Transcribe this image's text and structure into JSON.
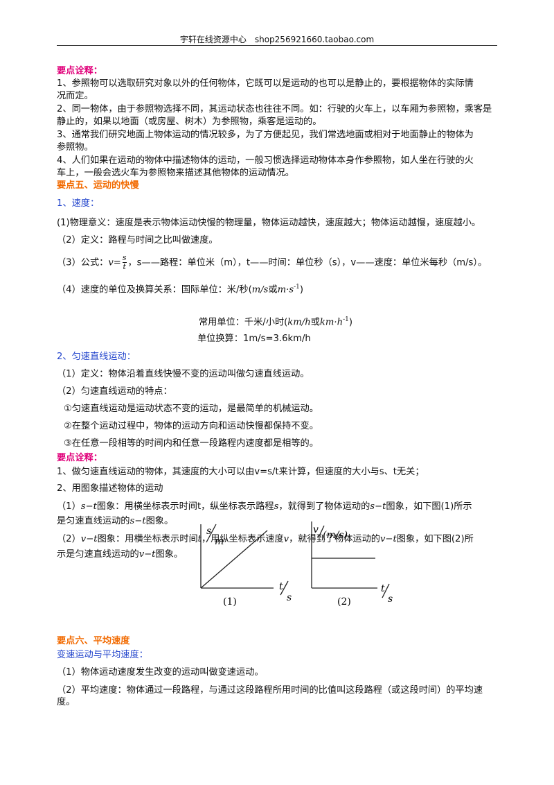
{
  "header": {
    "site": "宇轩在线资源中心",
    "shop": "shop256921660.taobao.com"
  },
  "lines": [
    "要点诠释：",
    "1、参照物可以选取研究对象以外的任何物体，它既可以是运动的也可以是静止的，要根据物体的实际情",
    "况而定。",
    "2、同一物体，由于参照物选择不同，其运动状态也往往不同。如：行驶的火车上，以车厢为参照物，乘客是",
    "静止的，如果以地面（或房屋、树木）为参照物，乘客是运动的。",
    "3、通常我们研究地面上物体运动的情况较多，为了方便起见，我们常选地面或相对于地面静止的物体为",
    "参照物。",
    "4、人们如果在运动的物体中描述物体的运动，一般习惯选择运动物体本身作参照物，如人坐在行驶的火",
    "车上，一般会选火车为参照物来描述其他物体的运动情况。",
    "要点五、运动的快慢",
    "1、速度：",
    "(1)物理意义：速度是表示物体运动快慢的物理量，物体运动越快，速度越大；物体运动越慢，速度越小。",
    "（2）定义：路程与时间之比叫做速度。",
    [
      "（3）公式：",
      "v",
      "=",
      "s",
      "t",
      "，s——路程：单位米（m），t——时间：单位秒（s），v——速度：单位米每秒（m/s）。"
    ],
    [
      "（4）速度的单位及换算关系：国际单位：米/秒(",
      "m/s",
      "或",
      "m·s",
      "-1",
      ")"
    ],
    [
      "常用单位：千米/小时(",
      "km/h",
      "或",
      "km·h",
      "-1",
      ")"
    ],
    "单位换算：1m/s=3.6km/h",
    "2、匀速直线运动：",
    "（1）定义：物体沿着直线快慢不变的运动叫做匀速直线运动。",
    "（2）匀速直线运动的特点：",
    "①匀速直线运动是运动状态不变的运动，是最简单的机械运动。",
    "②在整个运动过程中，物体的运动方向和运动快慢都保持不变。",
    "③在任意一段相等的时间内和任意一段路程内速度都是相等的。",
    "要点诠释：",
    "1、做匀速直线运动的物体，其速度的大小可以由v=s/t来计算，但速度的大小与s、t无关；",
    "2、用图象描述物体的运动",
    [
      "（1）",
      "s−t",
      "图象：用横坐标表示时间t，纵坐标表示路程",
      "s",
      "，就得到了物体运动的",
      "s−t",
      "图象，如下图(1)所示"
    ],
    [
      "是匀速直线运动的",
      "s−t",
      "图象。"
    ],
    [
      "（2）",
      "v−t",
      "图象：用横坐标表示时间",
      "t",
      "，用纵坐标表示速度",
      "v",
      "，就得到了物体运动的",
      "v−t",
      "图象，如下图(2)所"
    ],
    [
      "示是匀速直线运动的",
      "v−t",
      "图象。"
    ],
    "要点六、平均速度",
    "变速运动与平均速度：",
    "（1）物体运动速度发生改变的运动叫做变速运动。",
    "（2）平均速度：物体通过一段路程，与通过这段路程所用时间的比值叫这段路程（或这段时间）的平均速",
    "度。"
  ],
  "figure": {
    "graph1": {
      "y": "s",
      "y_unit": "m",
      "x": "t",
      "x_unit": "s",
      "caption": "(1)"
    },
    "graph2": {
      "y": "v",
      "y_unit": "(m/s)",
      "x": "t",
      "x_unit": "s",
      "caption": "(2)"
    }
  }
}
